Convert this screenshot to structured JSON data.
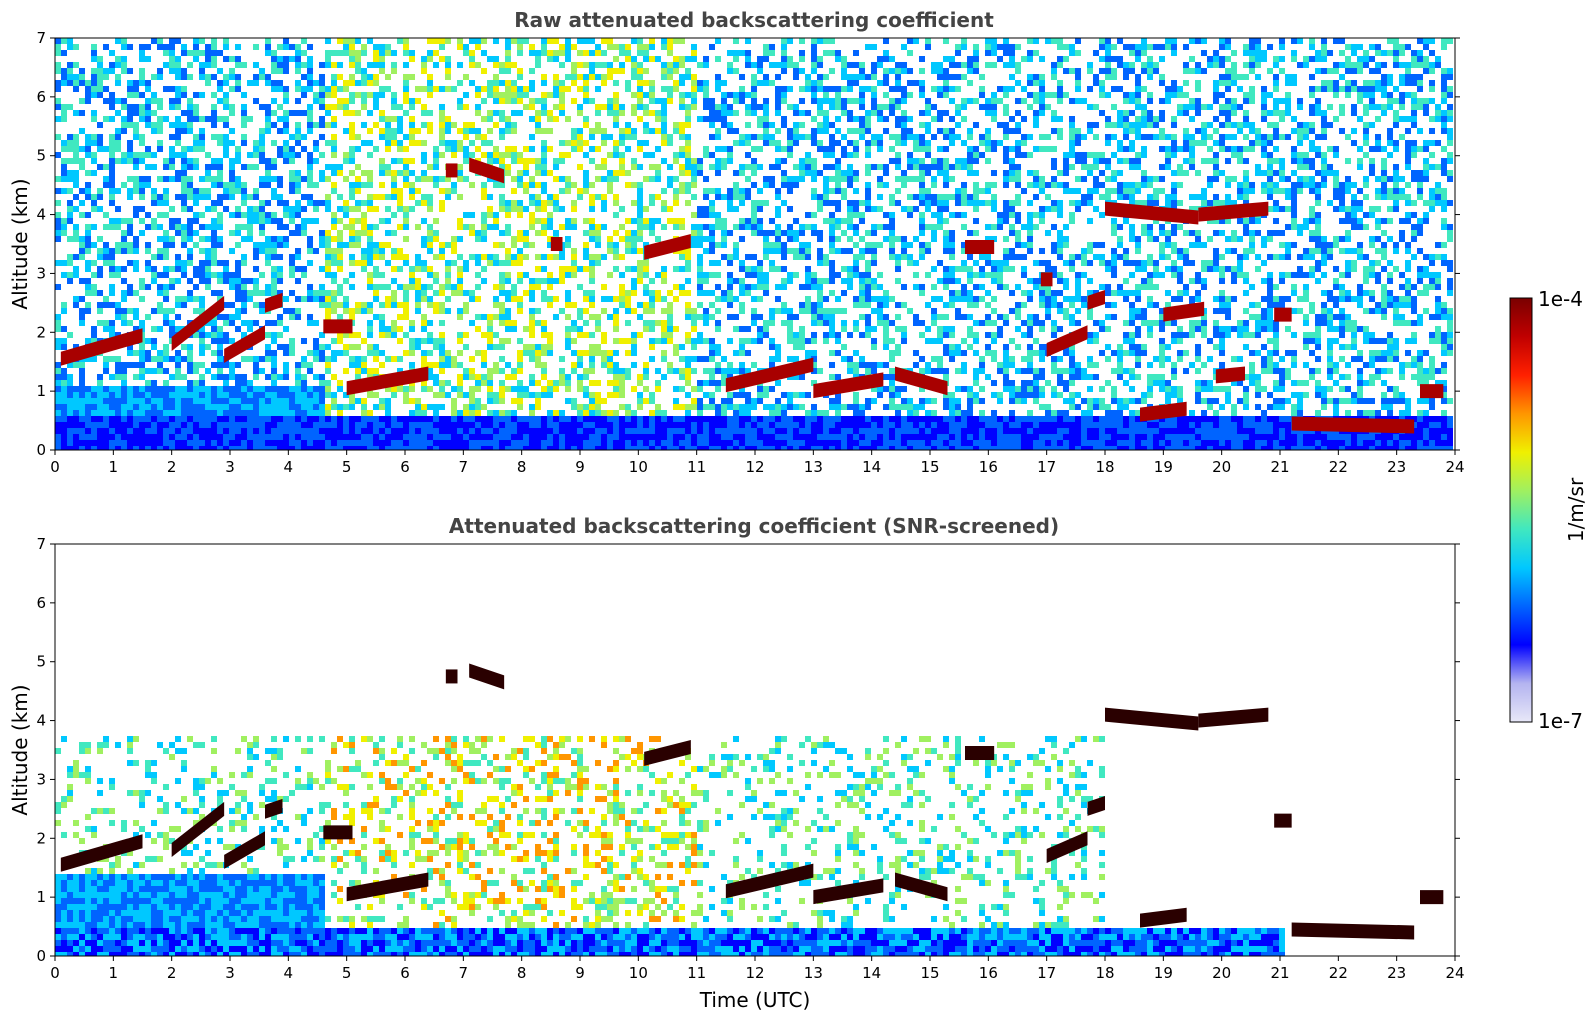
{
  "chart_data": [
    {
      "type": "heatmap",
      "title": "Raw attenuated backscattering coefficient",
      "xlabel": "",
      "ylabel": "Altitude (km)",
      "xlim": [
        0,
        24
      ],
      "ylim": [
        0,
        7
      ],
      "xticks": [
        "0",
        "1",
        "2",
        "3",
        "4",
        "5",
        "6",
        "7",
        "8",
        "9",
        "10",
        "11",
        "12",
        "13",
        "14",
        "15",
        "16",
        "17",
        "18",
        "19",
        "20",
        "21",
        "22",
        "23",
        "24"
      ],
      "yticks": [
        "0",
        "1",
        "2",
        "3",
        "4",
        "5",
        "6",
        "7"
      ],
      "screened": false,
      "layers": [
        {
          "t0": 0.1,
          "t1": 1.5,
          "h0": 1.55,
          "h1": 1.95
        },
        {
          "t0": 2.0,
          "t1": 2.9,
          "h0": 1.8,
          "h1": 2.5
        },
        {
          "t0": 2.9,
          "t1": 3.6,
          "h0": 1.6,
          "h1": 2.0
        },
        {
          "t0": 3.6,
          "t1": 3.9,
          "h0": 2.45,
          "h1": 2.55
        },
        {
          "t0": 4.6,
          "t1": 5.1,
          "h0": 2.1,
          "h1": 2.1
        },
        {
          "t0": 5.0,
          "t1": 6.4,
          "h0": 1.05,
          "h1": 1.3
        },
        {
          "t0": 6.7,
          "t1": 6.9,
          "h0": 4.75,
          "h1": 4.75
        },
        {
          "t0": 7.1,
          "t1": 7.7,
          "h0": 4.85,
          "h1": 4.65
        },
        {
          "t0": 8.5,
          "t1": 8.7,
          "h0": 3.5,
          "h1": 3.5
        },
        {
          "t0": 10.1,
          "t1": 10.9,
          "h0": 3.35,
          "h1": 3.55
        },
        {
          "t0": 11.5,
          "t1": 13.0,
          "h0": 1.1,
          "h1": 1.45
        },
        {
          "t0": 13.0,
          "t1": 14.2,
          "h0": 1.0,
          "h1": 1.2
        },
        {
          "t0": 14.4,
          "t1": 15.3,
          "h0": 1.3,
          "h1": 1.05
        },
        {
          "t0": 15.6,
          "t1": 16.1,
          "h0": 3.45,
          "h1": 3.45
        },
        {
          "t0": 16.9,
          "t1": 17.1,
          "h0": 2.9,
          "h1": 2.9
        },
        {
          "t0": 17.0,
          "t1": 17.7,
          "h0": 1.7,
          "h1": 2.0
        },
        {
          "t0": 17.7,
          "t1": 18.0,
          "h0": 2.5,
          "h1": 2.6
        },
        {
          "t0": 18.0,
          "t1": 19.6,
          "h0": 4.1,
          "h1": 3.95
        },
        {
          "t0": 19.6,
          "t1": 20.8,
          "h0": 4.0,
          "h1": 4.1
        },
        {
          "t0": 19.0,
          "t1": 19.7,
          "h0": 2.3,
          "h1": 2.4
        },
        {
          "t0": 18.6,
          "t1": 19.4,
          "h0": 0.6,
          "h1": 0.7
        },
        {
          "t0": 19.9,
          "t1": 20.4,
          "h0": 1.25,
          "h1": 1.3
        },
        {
          "t0": 20.9,
          "t1": 21.2,
          "h0": 2.3,
          "h1": 2.3
        },
        {
          "t0": 21.2,
          "t1": 23.3,
          "h0": 0.45,
          "h1": 0.4
        },
        {
          "t0": 23.4,
          "t1": 23.8,
          "h0": 1.0,
          "h1": 1.0
        }
      ]
    },
    {
      "type": "heatmap",
      "title": "Attenuated backscattering coefficient (SNR-screened)",
      "xlabel": "Time (UTC)",
      "ylabel": "Altitude (km)",
      "xlim": [
        0,
        24
      ],
      "ylim": [
        0,
        7
      ],
      "xticks": [
        "0",
        "1",
        "2",
        "3",
        "4",
        "5",
        "6",
        "7",
        "8",
        "9",
        "10",
        "11",
        "12",
        "13",
        "14",
        "15",
        "16",
        "17",
        "18",
        "19",
        "20",
        "21",
        "22",
        "23",
        "24"
      ],
      "yticks": [
        "0",
        "1",
        "2",
        "3",
        "4",
        "5",
        "6",
        "7"
      ],
      "screened": true,
      "layers": [
        {
          "t0": 0.1,
          "t1": 1.5,
          "h0": 1.55,
          "h1": 1.95
        },
        {
          "t0": 2.0,
          "t1": 2.9,
          "h0": 1.8,
          "h1": 2.5
        },
        {
          "t0": 2.9,
          "t1": 3.6,
          "h0": 1.6,
          "h1": 2.0
        },
        {
          "t0": 3.6,
          "t1": 3.9,
          "h0": 2.45,
          "h1": 2.55
        },
        {
          "t0": 4.6,
          "t1": 5.1,
          "h0": 2.1,
          "h1": 2.1
        },
        {
          "t0": 5.0,
          "t1": 6.4,
          "h0": 1.05,
          "h1": 1.3
        },
        {
          "t0": 6.7,
          "t1": 6.9,
          "h0": 4.75,
          "h1": 4.75
        },
        {
          "t0": 7.1,
          "t1": 7.7,
          "h0": 4.85,
          "h1": 4.65
        },
        {
          "t0": 10.1,
          "t1": 10.9,
          "h0": 3.35,
          "h1": 3.55
        },
        {
          "t0": 11.5,
          "t1": 13.0,
          "h0": 1.1,
          "h1": 1.45
        },
        {
          "t0": 13.0,
          "t1": 14.2,
          "h0": 1.0,
          "h1": 1.2
        },
        {
          "t0": 14.4,
          "t1": 15.3,
          "h0": 1.3,
          "h1": 1.05
        },
        {
          "t0": 15.6,
          "t1": 16.1,
          "h0": 3.45,
          "h1": 3.45
        },
        {
          "t0": 17.0,
          "t1": 17.7,
          "h0": 1.7,
          "h1": 2.0
        },
        {
          "t0": 17.7,
          "t1": 18.0,
          "h0": 2.5,
          "h1": 2.6
        },
        {
          "t0": 18.0,
          "t1": 19.6,
          "h0": 4.1,
          "h1": 3.95
        },
        {
          "t0": 19.6,
          "t1": 20.8,
          "h0": 4.0,
          "h1": 4.1
        },
        {
          "t0": 18.6,
          "t1": 19.4,
          "h0": 0.6,
          "h1": 0.7
        },
        {
          "t0": 20.9,
          "t1": 21.2,
          "h0": 2.3,
          "h1": 2.3
        },
        {
          "t0": 21.2,
          "t1": 23.3,
          "h0": 0.45,
          "h1": 0.4
        },
        {
          "t0": 23.4,
          "t1": 23.8,
          "h0": 1.0,
          "h1": 1.0
        }
      ]
    }
  ],
  "colorbar": {
    "label": "1/m/sr",
    "max_label": "1e-4",
    "min_label": "1e-7",
    "colormap": [
      "#e8e8f8",
      "#b4b4f0",
      "#0000ff",
      "#0064ff",
      "#00c8ff",
      "#40e8c0",
      "#a0f060",
      "#f0f000",
      "#ff9600",
      "#ff2000",
      "#c00000",
      "#7a0000"
    ]
  }
}
